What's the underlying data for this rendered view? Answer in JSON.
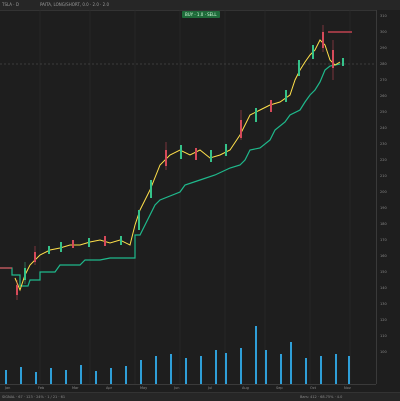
{
  "app": {
    "window_title": "TSLA · D",
    "legend_text": "PAITA, LONG/SHORT, 0.0 · 2.0 · 2.0"
  },
  "badges": {
    "signal_label": "BUY · 1.0 · SELL",
    "last_price": "267.5"
  },
  "price_axis": [
    "310",
    "300",
    "290",
    "280",
    "270",
    "260",
    "250",
    "240",
    "230",
    "220",
    "210",
    "200",
    "190",
    "180",
    "170",
    "160",
    "150",
    "140",
    "130",
    "120",
    "110",
    "100"
  ],
  "time_axis": [
    "Jan",
    "Feb",
    "Mar",
    "Apr",
    "May",
    "Jun",
    "Jul",
    "Aug",
    "Sep",
    "Oct",
    "Nov"
  ],
  "status": {
    "left": "SIGNAL · 67 · 123 · 24% · 1 / 21 · 61",
    "right": "Bars: 412 · 68.75% · 4.0"
  },
  "colors": {
    "bull": "#35c28a",
    "bear": "#d64a5a",
    "trail": "#1fb98c",
    "trail_bear": "#e04a5a",
    "signal_line": "#ffe04a",
    "volume": "#2f9fd8"
  }
}
